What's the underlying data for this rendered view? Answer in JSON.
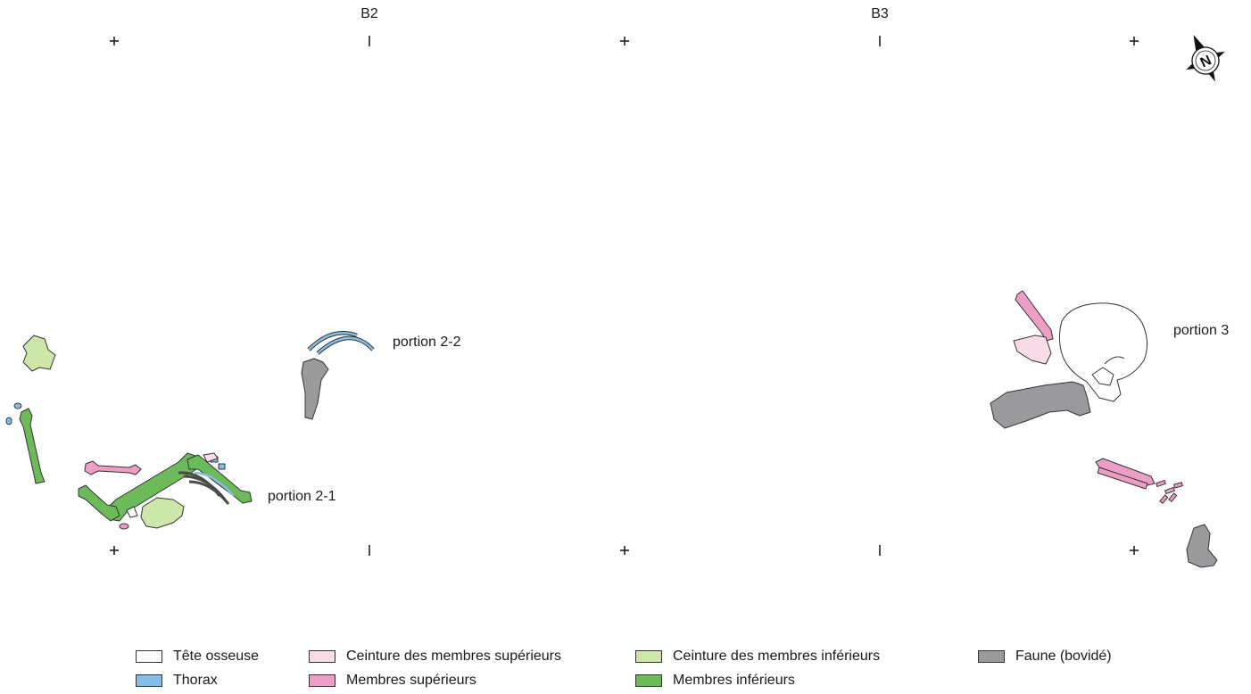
{
  "columns": [
    "B2",
    "B3"
  ],
  "portions": {
    "p21": "portion 2-1",
    "p22": "portion 2-2",
    "p3": "portion 3"
  },
  "compass": {
    "letter": "N",
    "icon": "north-arrow-icon"
  },
  "colors": {
    "tete": "#ffffff",
    "thorax": "#86bde8",
    "ceinture_sup": "#fadce8",
    "membres_sup": "#ee9ec6",
    "ceinture_inf": "#cde6aa",
    "membres_inf": "#6dba5a",
    "faune": "#9a9a9c"
  },
  "legend": {
    "row1": [
      "Tête osseuse",
      "Ceinture des membres supérieurs",
      "Ceinture des membres inférieurs",
      "Faune (bovidé)"
    ],
    "row2": [
      "Thorax",
      "Membres supérieurs",
      "Membres inférieurs"
    ]
  }
}
